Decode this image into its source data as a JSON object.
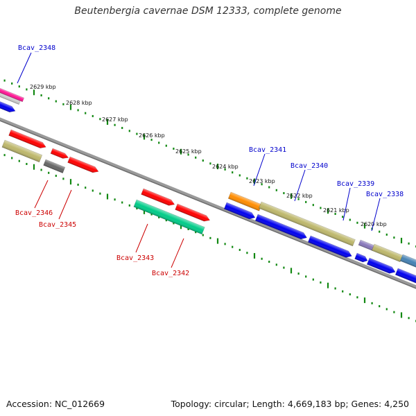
{
  "title": "Beutenbergia cavernae DSM 12333, complete genome",
  "footer": {
    "accession": "Accession: NC_012669",
    "stats": "Topology: circular; Length: 4,669,183 bp; Genes: 4,250"
  },
  "colors": {
    "background": "#ffffff",
    "backbone": "#888888",
    "tick": "#118811",
    "label_top": "#0000cc",
    "label_bottom": "#cc0000"
  },
  "scale_labels": [
    {
      "kbp": 2629,
      "text": "2629 kbp"
    },
    {
      "kbp": 2628,
      "text": "2628 kbp"
    },
    {
      "kbp": 2627,
      "text": "2627 kbp"
    },
    {
      "kbp": 2626,
      "text": "2626 kbp"
    },
    {
      "kbp": 2625,
      "text": "2625 kbp"
    },
    {
      "kbp": 2624,
      "text": "2624 kbp"
    },
    {
      "kbp": 2623,
      "text": "2623 kbp"
    },
    {
      "kbp": 2622,
      "text": "2622 kbp"
    },
    {
      "kbp": 2621,
      "text": "2621 kbp"
    },
    {
      "kbp": 2620,
      "text": "2620 kbp"
    }
  ],
  "gene_labels_top": [
    "Bcav_2348",
    "Bcav_2341",
    "Bcav_2340",
    "Bcav_2339",
    "Bcav_2338"
  ],
  "gene_labels_bottom": [
    "Bcav_2346",
    "Bcav_2345",
    "Bcav_2343",
    "Bcav_2342"
  ],
  "feature_colors": {
    "red": "#ff0000",
    "blue": "#0000ee",
    "olive": "#bdb76b",
    "orange": "#ff8c00",
    "teal": "#00cc88",
    "gray": "#666666",
    "magenta": "#ff1493",
    "lavender": "#8877bb",
    "steel": "#4682b4"
  }
}
